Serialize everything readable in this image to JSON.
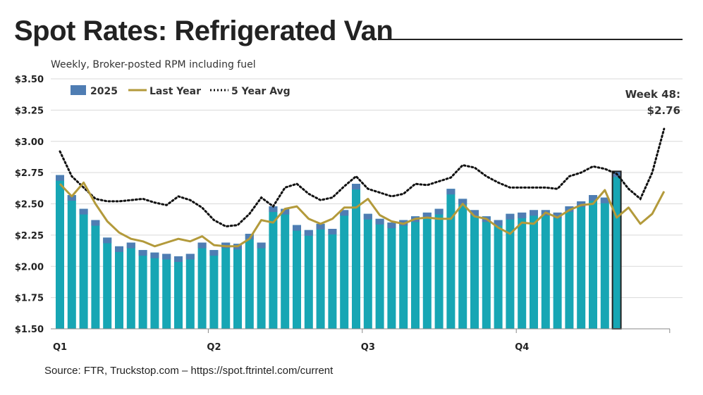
{
  "title": "Spot Rates: Refrigerated Van",
  "subtitle": "Weekly, Broker-posted RPM including fuel",
  "source": "Source: FTR, Truckstop.com – https://spot.ftrintel.com/current",
  "annotation": {
    "line1": "Week 48:",
    "line2": "$2.76"
  },
  "colors": {
    "bar": "#17a6b4",
    "bar_top": "#4f7db3",
    "last_year": "#b39a3b",
    "five_year": "#111111",
    "highlight_outline": "#222222"
  },
  "chart_data": {
    "type": "bar+line",
    "ylim": [
      1.5,
      3.5
    ],
    "y_ticks": [
      "$1.50",
      "$1.75",
      "$2.00",
      "$2.25",
      "$2.50",
      "$2.75",
      "$3.00",
      "$3.25",
      "$3.50"
    ],
    "y_tick_values": [
      1.5,
      1.75,
      2.0,
      2.25,
      2.5,
      2.75,
      3.0,
      3.25,
      3.5
    ],
    "x_labels": [
      "Q1",
      "Q2",
      "Q3",
      "Q4"
    ],
    "x_label_weeks": [
      1,
      14,
      27,
      40
    ],
    "weeks_total": 52,
    "grid": true,
    "legend_placement": "top-left",
    "highlight_week": 48,
    "series": [
      {
        "name": "2025",
        "kind": "bar",
        "values": [
          2.73,
          2.57,
          2.46,
          2.37,
          2.23,
          2.16,
          2.19,
          2.13,
          2.11,
          2.1,
          2.08,
          2.1,
          2.19,
          2.13,
          2.19,
          2.18,
          2.26,
          2.19,
          2.48,
          2.46,
          2.33,
          2.29,
          2.34,
          2.3,
          2.45,
          2.66,
          2.42,
          2.38,
          2.35,
          2.37,
          2.4,
          2.43,
          2.46,
          2.62,
          2.54,
          2.45,
          2.4,
          2.37,
          2.42,
          2.43,
          2.45,
          2.45,
          2.43,
          2.48,
          2.52,
          2.57,
          2.55,
          2.76
        ]
      },
      {
        "name": "Last Year",
        "kind": "line",
        "values": [
          2.66,
          2.56,
          2.67,
          2.5,
          2.36,
          2.27,
          2.22,
          2.2,
          2.16,
          2.19,
          2.22,
          2.2,
          2.24,
          2.17,
          2.16,
          2.16,
          2.22,
          2.37,
          2.35,
          2.46,
          2.48,
          2.38,
          2.34,
          2.38,
          2.47,
          2.47,
          2.54,
          2.41,
          2.36,
          2.34,
          2.38,
          2.39,
          2.38,
          2.38,
          2.5,
          2.4,
          2.38,
          2.31,
          2.26,
          2.35,
          2.34,
          2.43,
          2.39,
          2.45,
          2.49,
          2.5,
          2.61,
          2.39,
          2.47,
          2.34,
          2.42,
          2.6
        ]
      },
      {
        "name": "5 Year Avg",
        "kind": "dotted-line",
        "values": [
          2.92,
          2.72,
          2.63,
          2.54,
          2.52,
          2.52,
          2.53,
          2.54,
          2.51,
          2.49,
          2.56,
          2.53,
          2.47,
          2.37,
          2.32,
          2.33,
          2.42,
          2.55,
          2.48,
          2.63,
          2.66,
          2.58,
          2.53,
          2.55,
          2.64,
          2.72,
          2.62,
          2.59,
          2.56,
          2.58,
          2.66,
          2.65,
          2.68,
          2.71,
          2.81,
          2.79,
          2.72,
          2.67,
          2.63,
          2.63,
          2.63,
          2.63,
          2.62,
          2.72,
          2.75,
          2.8,
          2.78,
          2.74,
          2.62,
          2.54,
          2.75,
          3.1
        ]
      }
    ]
  }
}
